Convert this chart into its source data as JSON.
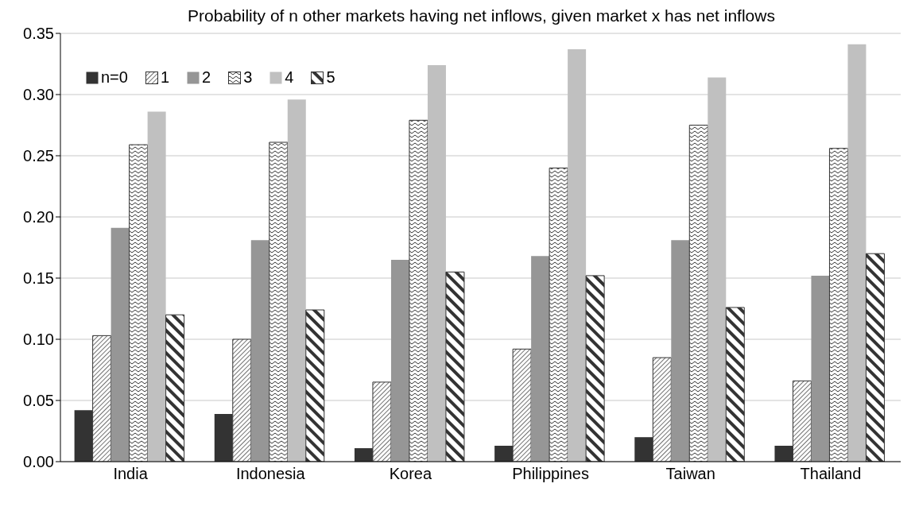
{
  "chart_data": {
    "type": "bar",
    "title": "Probability of n other markets having net inflows, given market x has net inflows",
    "categories": [
      "India",
      "Indonesia",
      "Korea",
      "Philippines",
      "Taiwan",
      "Thailand"
    ],
    "series": [
      {
        "name": "n=0",
        "color": "#333333",
        "values": [
          0.042,
          0.039,
          0.011,
          0.013,
          0.02,
          0.013
        ]
      },
      {
        "name": "1",
        "color": "#333333",
        "values": [
          0.103,
          0.1,
          0.065,
          0.092,
          0.085,
          0.066
        ]
      },
      {
        "name": "2",
        "color": "#969696",
        "values": [
          0.191,
          0.181,
          0.165,
          0.168,
          0.181,
          0.152
        ]
      },
      {
        "name": "3",
        "color": "#333333",
        "values": [
          0.259,
          0.261,
          0.279,
          0.24,
          0.275,
          0.256
        ]
      },
      {
        "name": "4",
        "color": "#c0c0c0",
        "values": [
          0.286,
          0.296,
          0.324,
          0.337,
          0.314,
          0.341
        ]
      },
      {
        "name": "5",
        "color": "#333333",
        "values": [
          0.12,
          0.124,
          0.155,
          0.152,
          0.126,
          0.17
        ]
      }
    ],
    "ylim": [
      0,
      0.35
    ],
    "yticks": [
      {
        "value": 0,
        "label": "0.00"
      },
      {
        "value": 0.05,
        "label": "0.05"
      },
      {
        "value": 0.1,
        "label": "0.10"
      },
      {
        "value": 0.15,
        "label": "0.15"
      },
      {
        "value": 0.2,
        "label": "0.20"
      },
      {
        "value": 0.25,
        "label": "0.25"
      },
      {
        "value": 0.3,
        "label": "0.30"
      },
      {
        "value": 0.35,
        "label": "0.35"
      }
    ],
    "grid": "y",
    "legend": "top left"
  }
}
